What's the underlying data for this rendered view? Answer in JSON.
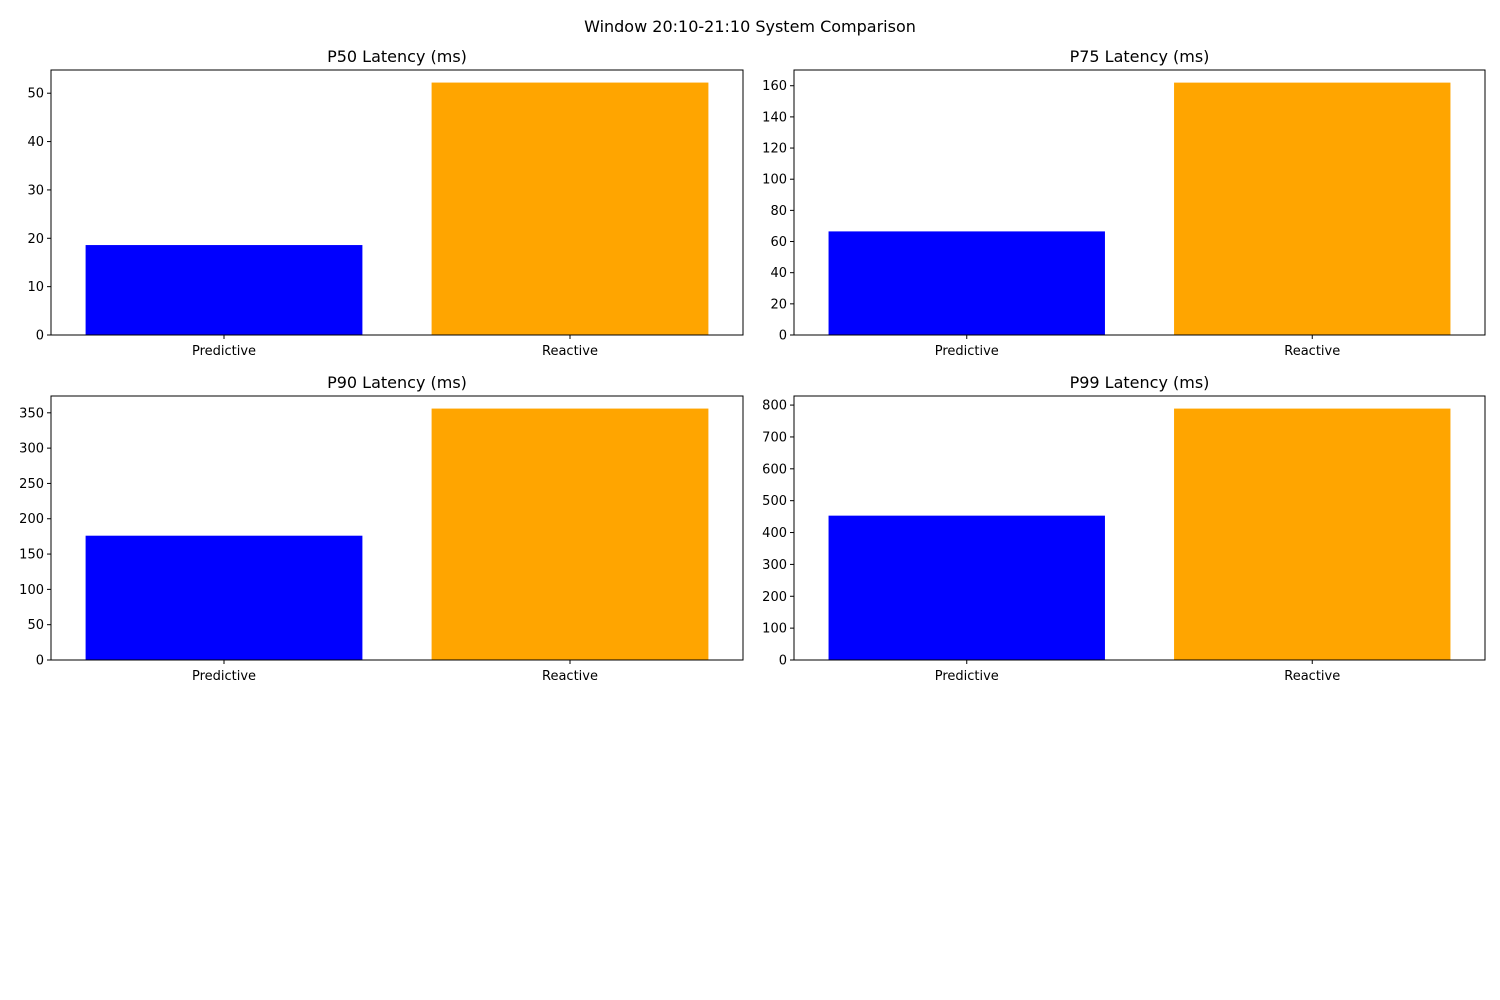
{
  "figure": {
    "suptitle": "Window 20:10-21:10 System Comparison"
  },
  "chart_data": [
    {
      "type": "bar",
      "title": "P50 Latency (ms)",
      "categories": [
        "Predictive",
        "Reactive"
      ],
      "values": [
        18.6,
        52.2
      ],
      "colors": [
        "#0000ff",
        "#ffa500"
      ],
      "ylim": [
        0,
        54.8
      ],
      "yticks": [
        0,
        10,
        20,
        30,
        40,
        50
      ],
      "grid": false
    },
    {
      "type": "bar",
      "title": "P75 Latency (ms)",
      "categories": [
        "Predictive",
        "Reactive"
      ],
      "values": [
        66.5,
        162.0
      ],
      "colors": [
        "#0000ff",
        "#ffa500"
      ],
      "ylim": [
        0,
        170.1
      ],
      "yticks": [
        0,
        20,
        40,
        60,
        80,
        100,
        120,
        140,
        160
      ],
      "grid": false
    },
    {
      "type": "bar",
      "title": "P90 Latency (ms)",
      "categories": [
        "Predictive",
        "Reactive"
      ],
      "values": [
        176,
        356
      ],
      "colors": [
        "#0000ff",
        "#ffa500"
      ],
      "ylim": [
        0,
        373.8
      ],
      "yticks": [
        0,
        50,
        100,
        150,
        200,
        250,
        300,
        350
      ],
      "grid": false
    },
    {
      "type": "bar",
      "title": "P99 Latency (ms)",
      "categories": [
        "Predictive",
        "Reactive"
      ],
      "values": [
        453,
        789
      ],
      "colors": [
        "#0000ff",
        "#ffa500"
      ],
      "ylim": [
        0,
        828.5
      ],
      "yticks": [
        0,
        100,
        200,
        300,
        400,
        500,
        600,
        700,
        800
      ],
      "grid": false
    }
  ]
}
